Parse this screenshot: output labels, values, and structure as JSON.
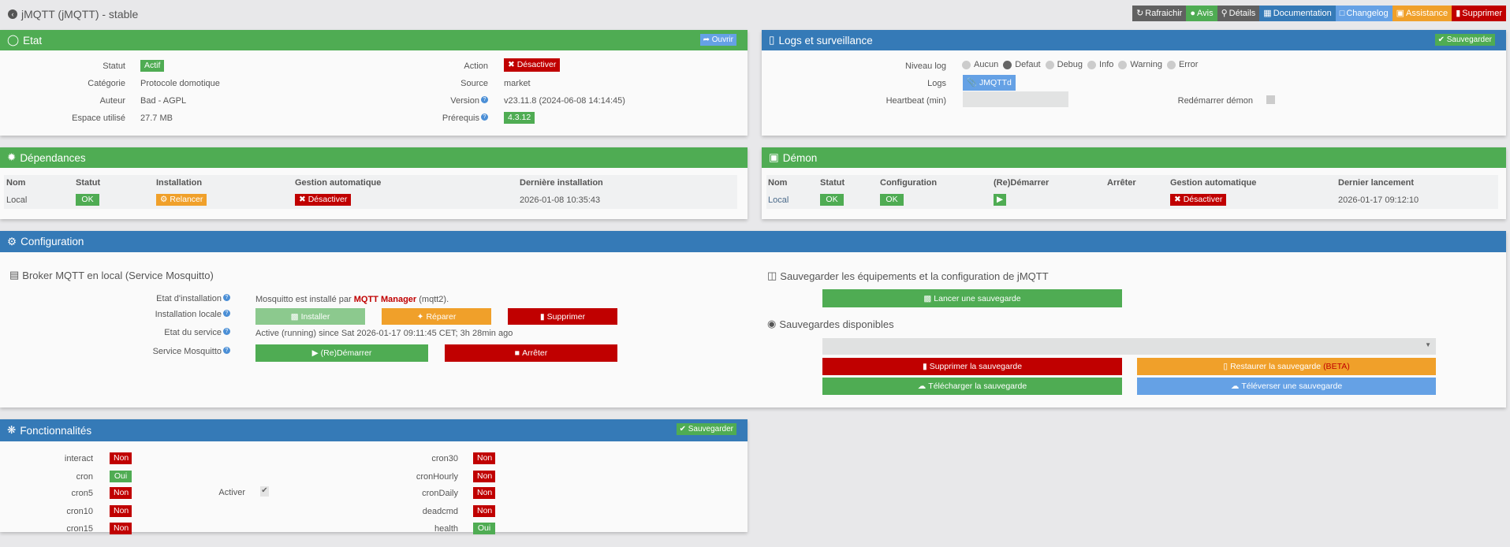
{
  "header": {
    "title": "jMQTT (jMQTT) - stable",
    "buttons": [
      {
        "label": "Rafraichir",
        "color": "#616161"
      },
      {
        "label": "Avis",
        "color": "#4fac53"
      },
      {
        "label": "Détails",
        "color": "#616161"
      },
      {
        "label": "Documentation",
        "color": "#357ab7"
      },
      {
        "label": "Changelog",
        "color": "#65a1e5"
      },
      {
        "label": "Assistance",
        "color": "#f0a02a"
      },
      {
        "label": "Supprimer",
        "color": "#c00000"
      }
    ]
  },
  "etat": {
    "title": "Etat",
    "open": "Ouvrir",
    "statut_label": "Statut",
    "statut": "Actif",
    "categorie_label": "Catégorie",
    "categorie": "Protocole domotique",
    "auteur_label": "Auteur",
    "auteur": "Bad - AGPL",
    "espace_label": "Espace utilisé",
    "espace": "27.7 MB",
    "action_label": "Action",
    "action": "Désactiver",
    "source_label": "Source",
    "source": "market",
    "version_label": "Version",
    "version": "v23.11.8 (2024-06-08 14:14:45)",
    "prerequis_label": "Prérequis",
    "prerequis": "4.3.12"
  },
  "logs": {
    "title": "Logs et surveillance",
    "save": "Sauvegarder",
    "niveau_label": "Niveau log",
    "levels": [
      "Aucun",
      "Defaut",
      "Debug",
      "Info",
      "Warning",
      "Error"
    ],
    "selected_level": "Defaut",
    "logs_label": "Logs",
    "log_button": "JMQTTd",
    "heartbeat_label": "Heartbeat (min)",
    "heartbeat_value": "",
    "restart_label": "Redémarrer démon",
    "restart_checked": false
  },
  "dependances": {
    "title": "Dépendances",
    "columns": [
      "Nom",
      "Statut",
      "Installation",
      "Gestion automatique",
      "Dernière installation"
    ],
    "row": {
      "nom": "Local",
      "statut": "OK",
      "installation": "Relancer",
      "gestion": "Désactiver",
      "derniere": "2026-01-08 10:35:43"
    }
  },
  "demon": {
    "title": "Démon",
    "columns": [
      "Nom",
      "Statut",
      "Configuration",
      "(Re)Démarrer",
      "Arrêter",
      "Gestion automatique",
      "Dernier lancement"
    ],
    "row": {
      "nom": "Local",
      "statut": "OK",
      "configuration": "OK",
      "gestion": "Désactiver",
      "dernier": "2026-01-17 09:12:10"
    }
  },
  "configuration": {
    "title": "Configuration",
    "broker": {
      "heading": "Broker MQTT en local (Service Mosquitto)",
      "etat_install_label": "Etat d'installation",
      "etat_install_prefix": "Mosquitto est installé par ",
      "etat_install_link": "MQTT Manager",
      "etat_install_suffix": " (mqtt2).",
      "install_locale_label": "Installation locale",
      "installer": "Installer",
      "reparer": "Réparer",
      "supprimer": "Supprimer",
      "etat_service_label": "Etat du service",
      "etat_service": "Active (running) since Sat 2026-01-17 09:11:45 CET; 3h 28min ago",
      "service_label": "Service Mosquitto",
      "redemarrer": "(Re)Démarrer",
      "arreter": "Arrêter"
    },
    "backup": {
      "heading": "Sauvegarder les équipements et la configuration de jMQTT",
      "launch": "Lancer une sauvegarde",
      "available_heading": "Sauvegardes disponibles",
      "select_value": "",
      "delete": "Supprimer la sauvegarde",
      "restore": "Restaurer la sauvegarde",
      "restore_beta": "(BETA)",
      "download": "Télécharger la sauvegarde",
      "upload": "Téléverser une sauvegarde"
    }
  },
  "fonctionnalites": {
    "title": "Fonctionnalités",
    "save": "Sauvegarder",
    "activer_label": "Activer",
    "activer_checked": true,
    "left": [
      {
        "name": "interact",
        "value": "Non"
      },
      {
        "name": "cron",
        "value": "Oui"
      },
      {
        "name": "cron5",
        "value": "Non"
      },
      {
        "name": "cron10",
        "value": "Non"
      },
      {
        "name": "cron15",
        "value": "Non"
      }
    ],
    "right": [
      {
        "name": "cron30",
        "value": "Non"
      },
      {
        "name": "cronHourly",
        "value": "Non"
      },
      {
        "name": "cronDaily",
        "value": "Non"
      },
      {
        "name": "deadcmd",
        "value": "Non"
      },
      {
        "name": "health",
        "value": "Oui"
      }
    ]
  }
}
